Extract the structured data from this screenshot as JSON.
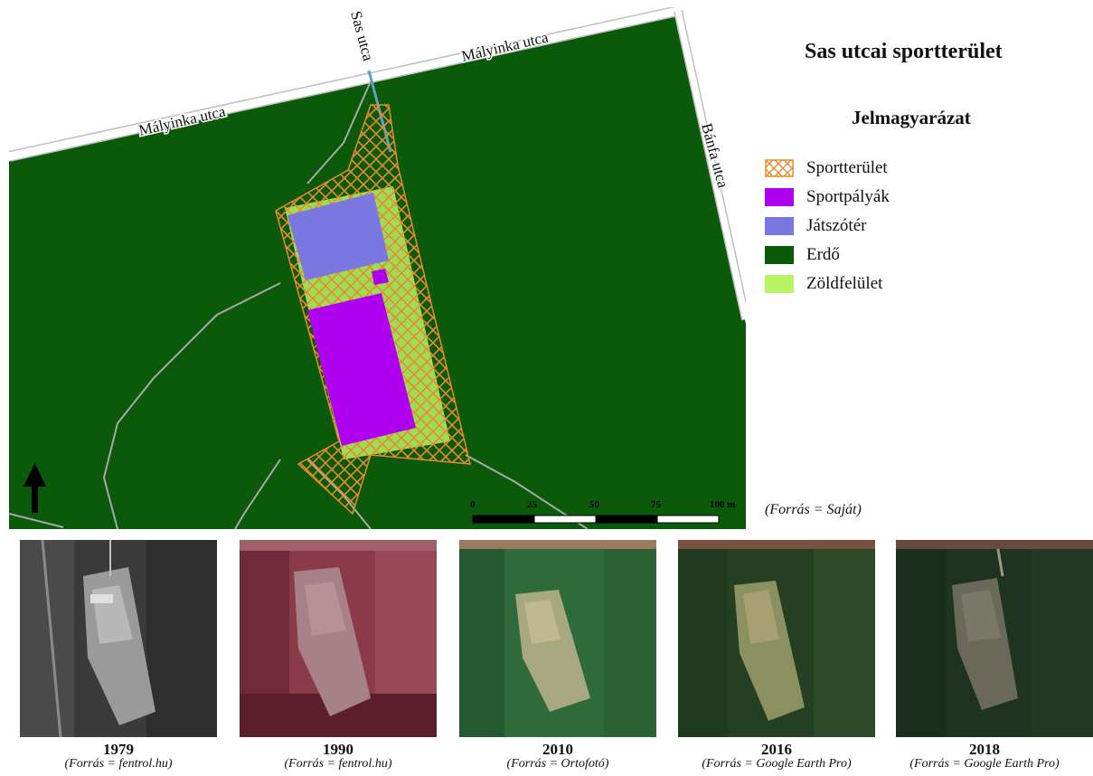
{
  "title": "Sas utcai sportterület",
  "legend": {
    "title": "Jelmagyarázat",
    "items": [
      {
        "label": "Sportterület",
        "color": "#e8892c",
        "pattern": "crosshatch"
      },
      {
        "label": "Sportpályák",
        "color": "#b000f0"
      },
      {
        "label": "Játszótér",
        "color": "#7b77e0"
      },
      {
        "label": "Erdő",
        "color": "#0a5a0a"
      },
      {
        "label": "Zöldfelület",
        "color": "#b6f566"
      }
    ]
  },
  "map": {
    "streets": [
      "Mályinka utca",
      "Mályinka utca",
      "Sas utca",
      "Bánfa utca"
    ],
    "scale_labels": [
      "0",
      "25",
      "50",
      "75",
      "100 m"
    ],
    "north_arrow": "north-arrow-icon",
    "source": "(Forrás = Saját)"
  },
  "photos": [
    {
      "year": "1979",
      "source": "(Forrás = fentrol.hu)",
      "tone": "grayscale"
    },
    {
      "year": "1990",
      "source": "(Forrás = fentrol.hu)",
      "tone": "false-color"
    },
    {
      "year": "2010",
      "source": "(Forrás = Ortofotó)",
      "tone": "color"
    },
    {
      "year": "2016",
      "source": "(Forrás = Google Earth Pro)",
      "tone": "color"
    },
    {
      "year": "2018",
      "source": "(Forrás = Google Earth Pro)",
      "tone": "dark-color"
    }
  ]
}
